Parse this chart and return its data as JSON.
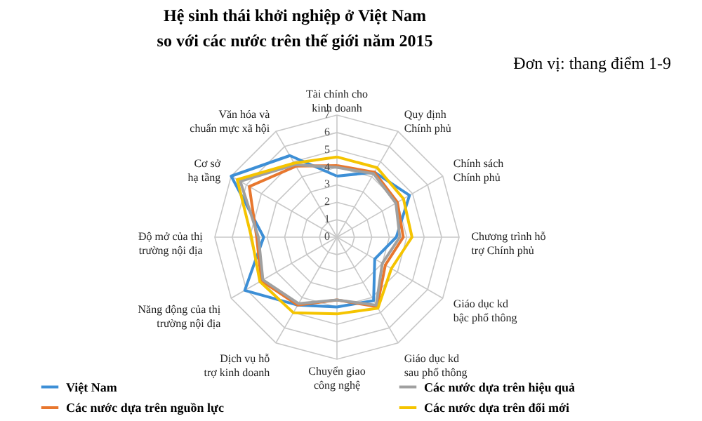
{
  "chart_data": {
    "type": "radar",
    "title": "Hệ sinh thái khởi nghiệp ở Việt Nam so với các nước trên thế giới năm 2015",
    "annotations": [
      "Đơn vị: thang điểm 1-9"
    ],
    "categories": [
      "Tài chính cho kinh doanh",
      "Quy định Chính phủ",
      "Chính sách Chính phủ",
      "Chương trình hỗ trợ Chính phủ",
      "Giáo dục kd bậc phổ thông",
      "Giáo dục kd sau phổ thông",
      "Chuyển giao công nghệ",
      "Dịch vụ hỗ trợ kinh doanh",
      "Năng động của thị trường nội địa",
      "Độ mở của thị trường nội địa",
      "Cơ sở hạ tầng",
      "Văn hóa và chuẩn mực xã hội"
    ],
    "series": [
      {
        "name": "Việt Nam",
        "color": "#3d8fd6",
        "values": [
          3.5,
          4.3,
          4.8,
          3.4,
          2.5,
          4.2,
          4.0,
          4.5,
          6.1,
          4.2,
          7.0,
          5.4
        ]
      },
      {
        "name": "Các nước dựa trên nguồn lực",
        "color": "#e8772e",
        "values": [
          4.1,
          4.3,
          4.0,
          3.8,
          3.2,
          4.6,
          3.6,
          4.5,
          5.0,
          4.6,
          5.8,
          4.7
        ]
      },
      {
        "name": "Các nước dựa trên hiệu quả",
        "color": "#a0a0a0",
        "values": [
          4.0,
          4.2,
          3.9,
          3.6,
          3.0,
          4.5,
          3.6,
          4.4,
          4.9,
          4.5,
          6.4,
          4.8
        ]
      },
      {
        "name": "Các nước dựa trên đổi mới",
        "color": "#f5c400",
        "values": [
          4.6,
          4.6,
          4.4,
          4.3,
          3.6,
          4.7,
          4.4,
          5.0,
          5.1,
          4.9,
          6.6,
          4.9
        ]
      }
    ],
    "ylim": [
      0,
      7
    ],
    "yticks": [
      0,
      1,
      2,
      3,
      4,
      5,
      6,
      7
    ],
    "grid": true,
    "legend": "bottom",
    "line_style": "solid",
    "marker": "none"
  }
}
